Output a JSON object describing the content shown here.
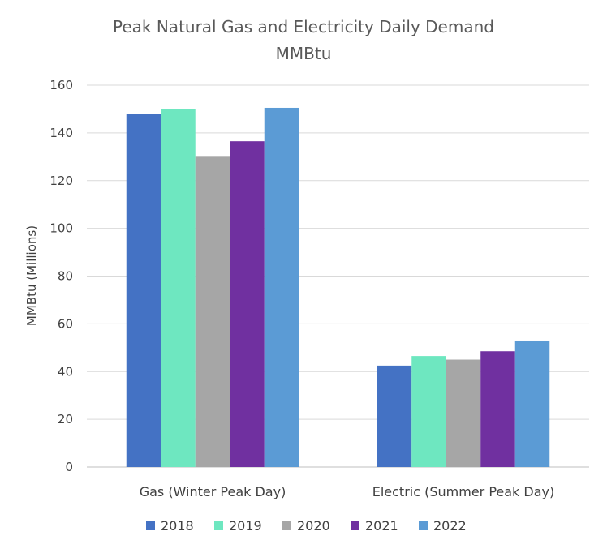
{
  "chart_data": {
    "type": "bar",
    "title": "Peak Natural Gas and Electricity Daily Demand",
    "subtitle": "MMBtu",
    "xlabel": "",
    "ylabel": "MMBtu (Millions)",
    "ylim": [
      0,
      160
    ],
    "yticks": [
      0,
      20,
      40,
      60,
      80,
      100,
      120,
      140,
      160
    ],
    "grid": true,
    "legend_position": "bottom",
    "categories": [
      "Gas (Winter Peak Day)",
      "Electric (Summer Peak Day)"
    ],
    "series": [
      {
        "name": "2018",
        "color": "#4472c4",
        "values": [
          148,
          42.5
        ]
      },
      {
        "name": "2019",
        "color": "#6ee7c0",
        "values": [
          150,
          46.5
        ]
      },
      {
        "name": "2020",
        "color": "#a6a6a6",
        "values": [
          130,
          45
        ]
      },
      {
        "name": "2021",
        "color": "#7030a0",
        "values": [
          136.5,
          48.5
        ]
      },
      {
        "name": "2022",
        "color": "#5b9bd5",
        "values": [
          150.5,
          53
        ]
      }
    ]
  }
}
